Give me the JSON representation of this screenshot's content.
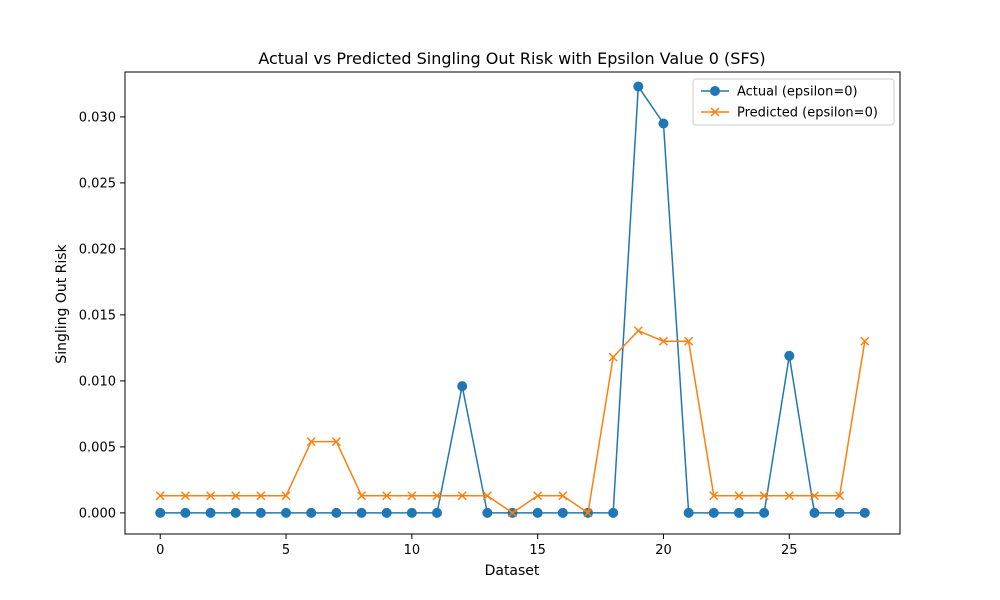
{
  "chart_data": {
    "type": "line",
    "title": "Actual vs Predicted Singling Out Risk with Epsilon Value 0 (SFS)",
    "xlabel": "Dataset",
    "ylabel": "Singling Out Risk",
    "xlim": [
      -1.4,
      29.4
    ],
    "ylim": [
      -0.0016,
      0.0334
    ],
    "x_ticks": [
      0,
      5,
      10,
      15,
      20,
      25
    ],
    "x_tick_labels": [
      "0",
      "5",
      "10",
      "15",
      "20",
      "25"
    ],
    "y_ticks": [
      0.0,
      0.005,
      0.01,
      0.015,
      0.02,
      0.025,
      0.03
    ],
    "y_tick_labels": [
      "0.000",
      "0.005",
      "0.010",
      "0.015",
      "0.020",
      "0.025",
      "0.030"
    ],
    "grid": false,
    "legend_position": "top-right",
    "x": [
      0,
      1,
      2,
      3,
      4,
      5,
      6,
      7,
      8,
      9,
      10,
      11,
      12,
      13,
      14,
      15,
      16,
      17,
      18,
      19,
      20,
      21,
      22,
      23,
      24,
      25,
      26,
      27,
      28
    ],
    "series": [
      {
        "name": "Actual (epsilon=0)",
        "color": "#1f77b4",
        "marker": "circle",
        "values": [
          0,
          0,
          0,
          0,
          0,
          0,
          0,
          0,
          0,
          0,
          0,
          0,
          0.0096,
          0,
          0,
          0,
          0,
          0,
          0,
          0.0323,
          0.0295,
          0,
          0,
          0,
          0,
          0.0119,
          0,
          0,
          0
        ]
      },
      {
        "name": "Predicted (epsilon=0)",
        "color": "#ff7f0e",
        "marker": "x",
        "values": [
          0.0013,
          0.0013,
          0.0013,
          0.0013,
          0.0013,
          0.0013,
          0.0054,
          0.0054,
          0.0013,
          0.0013,
          0.0013,
          0.0013,
          0.0013,
          0.0013,
          0.0,
          0.0013,
          0.0013,
          0.0,
          0.0118,
          0.0138,
          0.013,
          0.013,
          0.0013,
          0.0013,
          0.0013,
          0.0013,
          0.0013,
          0.0013,
          0.013
        ]
      }
    ]
  }
}
